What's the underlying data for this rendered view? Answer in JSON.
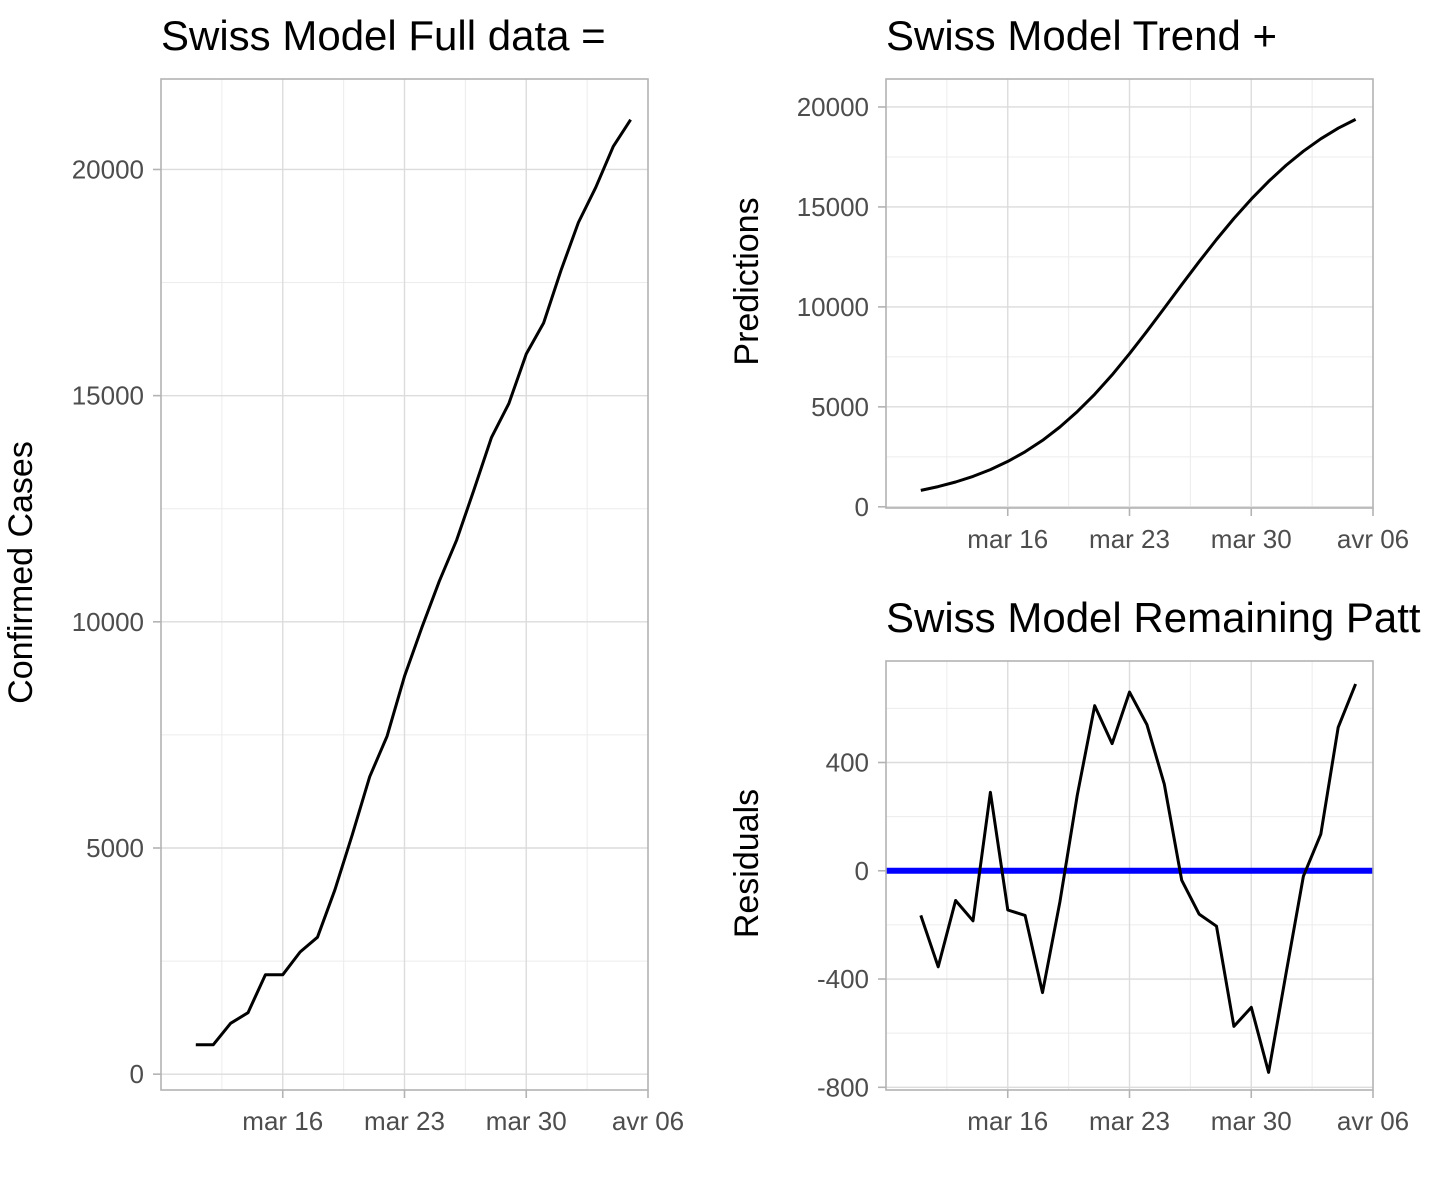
{
  "chart_data": [
    {
      "type": "line",
      "title": "Swiss Model Full data =",
      "xlabel": "",
      "ylabel": "Confirmed Cases",
      "x": [
        "2020-03-11",
        "2020-03-12",
        "2020-03-13",
        "2020-03-14",
        "2020-03-15",
        "2020-03-16",
        "2020-03-17",
        "2020-03-18",
        "2020-03-19",
        "2020-03-20",
        "2020-03-21",
        "2020-03-22",
        "2020-03-23",
        "2020-03-24",
        "2020-03-25",
        "2020-03-26",
        "2020-03-27",
        "2020-03-28",
        "2020-03-29",
        "2020-03-30",
        "2020-03-31",
        "2020-04-01",
        "2020-04-02",
        "2020-04-03",
        "2020-04-04",
        "2020-04-05"
      ],
      "values": [
        650,
        650,
        1125,
        1359,
        2200,
        2200,
        2700,
        3028,
        4075,
        5294,
        6575,
        7474,
        8795,
        9877,
        10897,
        11811,
        12928,
        14076,
        14829,
        15922,
        16605,
        17768,
        18827,
        19606,
        20505,
        21100
      ],
      "xlim": [
        "2020-03-09",
        "2020-04-06"
      ],
      "ylim": [
        -350,
        22000
      ],
      "x_ticks": [
        {
          "value": "2020-03-16",
          "label": "mar 16"
        },
        {
          "value": "2020-03-23",
          "label": "mar 23"
        },
        {
          "value": "2020-03-30",
          "label": "mar 30"
        },
        {
          "value": "2020-04-06",
          "label": "avr 06"
        }
      ],
      "y_ticks": [
        {
          "value": 0,
          "label": "0"
        },
        {
          "value": 5000,
          "label": "5000"
        },
        {
          "value": 10000,
          "label": "10000"
        },
        {
          "value": 15000,
          "label": "15000"
        },
        {
          "value": 20000,
          "label": "20000"
        }
      ],
      "grid": true,
      "line_color": "#000000"
    },
    {
      "type": "line",
      "title": "Swiss Model Trend +",
      "xlabel": "",
      "ylabel": "Predictions",
      "x": [
        "2020-03-11",
        "2020-03-12",
        "2020-03-13",
        "2020-03-14",
        "2020-03-15",
        "2020-03-16",
        "2020-03-17",
        "2020-03-18",
        "2020-03-19",
        "2020-03-20",
        "2020-03-21",
        "2020-03-22",
        "2020-03-23",
        "2020-03-24",
        "2020-03-25",
        "2020-03-26",
        "2020-03-27",
        "2020-03-28",
        "2020-03-29",
        "2020-03-30",
        "2020-03-31",
        "2020-04-01",
        "2020-04-02",
        "2020-04-03",
        "2020-04-04",
        "2020-04-05"
      ],
      "values": [
        820,
        1010,
        1240,
        1520,
        1860,
        2270,
        2750,
        3320,
        3990,
        4760,
        5630,
        6600,
        7660,
        8780,
        9940,
        11110,
        12260,
        13370,
        14420,
        15390,
        16280,
        17080,
        17790,
        18410,
        18940,
        19380
      ],
      "xlim": [
        "2020-03-09",
        "2020-04-06"
      ],
      "ylim": [
        -60,
        21400
      ],
      "x_ticks": [
        {
          "value": "2020-03-16",
          "label": "mar 16"
        },
        {
          "value": "2020-03-23",
          "label": "mar 23"
        },
        {
          "value": "2020-03-30",
          "label": "mar 30"
        },
        {
          "value": "2020-04-06",
          "label": "avr 06"
        }
      ],
      "y_ticks": [
        {
          "value": 0,
          "label": "0"
        },
        {
          "value": 5000,
          "label": "5000"
        },
        {
          "value": 10000,
          "label": "10000"
        },
        {
          "value": 15000,
          "label": "15000"
        },
        {
          "value": 20000,
          "label": "20000"
        }
      ],
      "grid": true,
      "line_color": "#000000"
    },
    {
      "type": "line",
      "title": "Swiss Model Remaining Patt",
      "xlabel": "",
      "ylabel": "Residuals",
      "x": [
        "2020-03-11",
        "2020-03-12",
        "2020-03-13",
        "2020-03-14",
        "2020-03-15",
        "2020-03-16",
        "2020-03-17",
        "2020-03-18",
        "2020-03-19",
        "2020-03-20",
        "2020-03-21",
        "2020-03-22",
        "2020-03-23",
        "2020-03-24",
        "2020-03-25",
        "2020-03-26",
        "2020-03-27",
        "2020-03-28",
        "2020-03-29",
        "2020-03-30",
        "2020-03-31",
        "2020-04-01",
        "2020-04-02",
        "2020-04-03",
        "2020-04-04",
        "2020-04-05"
      ],
      "values": [
        -165,
        -355,
        -110,
        -185,
        290,
        -145,
        -165,
        -450,
        -115,
        280,
        610,
        470,
        660,
        540,
        320,
        -35,
        -160,
        -205,
        -575,
        -505,
        -745,
        -380,
        -20,
        135,
        530,
        690
      ],
      "xlim": [
        "2020-03-09",
        "2020-04-06"
      ],
      "ylim": [
        -810,
        775
      ],
      "x_ticks": [
        {
          "value": "2020-03-16",
          "label": "mar 16"
        },
        {
          "value": "2020-03-23",
          "label": "mar 23"
        },
        {
          "value": "2020-03-30",
          "label": "mar 30"
        },
        {
          "value": "2020-04-06",
          "label": "avr 06"
        }
      ],
      "y_ticks": [
        {
          "value": -800,
          "label": "-800"
        },
        {
          "value": -400,
          "label": "-400"
        },
        {
          "value": 0,
          "label": "0"
        },
        {
          "value": 400,
          "label": "400"
        }
      ],
      "grid": true,
      "line_color": "#000000",
      "reference_line": {
        "y": 0,
        "color": "#0000ff"
      }
    }
  ]
}
